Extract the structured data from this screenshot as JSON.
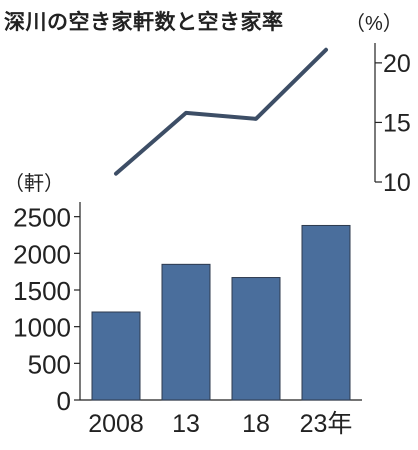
{
  "title": "深川の空き家軒数と空き家率",
  "chart_data": [
    {
      "type": "line",
      "name": "空き家率",
      "unit_label": "（%）",
      "x": [
        "2008",
        "13",
        "18",
        "23年"
      ],
      "values": [
        10.7,
        15.8,
        15.3,
        21.1
      ],
      "ylim": [
        10,
        21.5
      ],
      "yticks": [
        10,
        15,
        20
      ],
      "color": "#3d4e66"
    },
    {
      "type": "bar",
      "name": "空き家軒数",
      "unit_label": "（軒）",
      "categories": [
        "2008",
        "13",
        "18",
        "23年"
      ],
      "values": [
        1200,
        1850,
        1670,
        2380
      ],
      "ylim": [
        0,
        2700
      ],
      "yticks": [
        0,
        500,
        1000,
        1500,
        2000,
        2500
      ],
      "color": "#4a6e9c"
    }
  ]
}
